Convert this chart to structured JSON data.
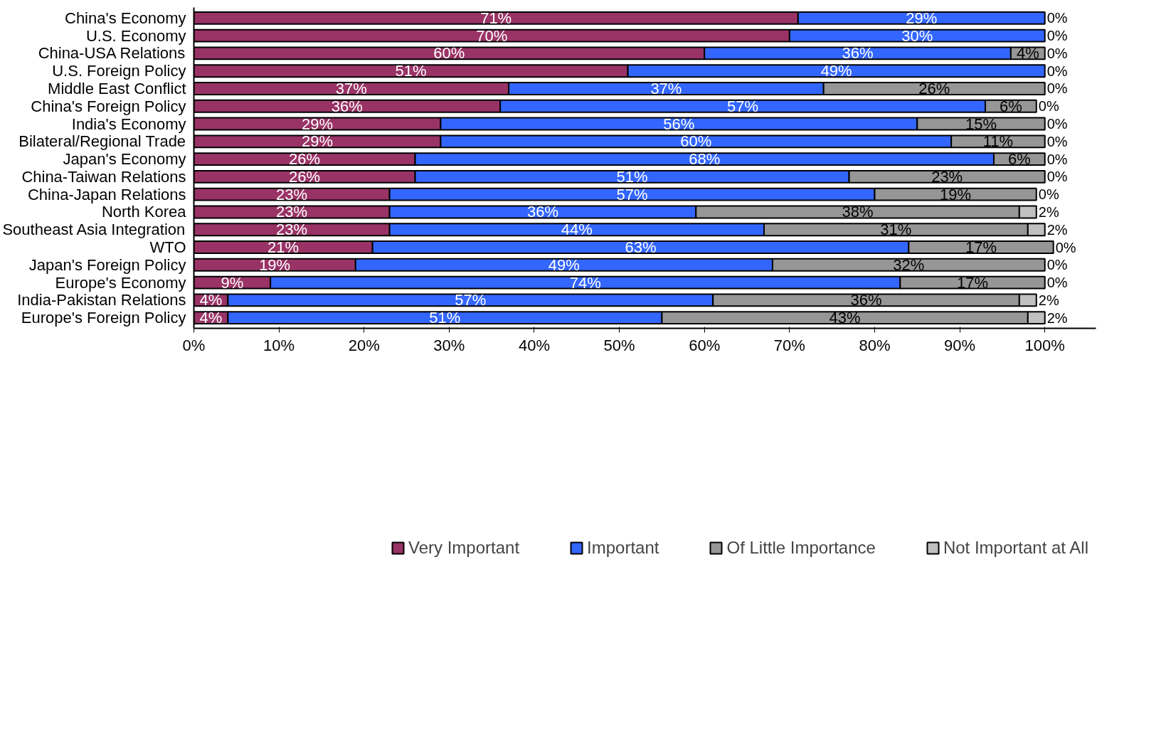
{
  "chart_data": {
    "type": "bar",
    "orientation": "horizontal",
    "stacked": true,
    "categories": [
      "China's Economy",
      "U.S. Economy",
      "China-USA Relations",
      "U.S. Foreign Policy",
      "Middle East Conflict",
      "China's Foreign Policy",
      "India's Economy",
      "Bilateral/Regional Trade",
      "Japan's Economy",
      "China-Taiwan Relations",
      "China-Japan Relations",
      "North Korea",
      "Southeast Asia Integration",
      "WTO",
      "Japan's Foreign Policy",
      "Europe's Economy",
      "India-Pakistan Relations",
      "Europe's Foreign Policy"
    ],
    "series": [
      {
        "name": "Very Important",
        "color": "#993366",
        "values": [
          71,
          70,
          60,
          51,
          37,
          36,
          29,
          29,
          26,
          26,
          23,
          23,
          23,
          21,
          19,
          9,
          4,
          4
        ],
        "value_labels": [
          "71%",
          "70%",
          "60%",
          "51%",
          "37%",
          "36%",
          "29%",
          "29%",
          "26%",
          "26%",
          "23%",
          "23%",
          "23%",
          "21%",
          "19%",
          "9%",
          "4%",
          "4%"
        ]
      },
      {
        "name": "Important",
        "color": "#3366ff",
        "values": [
          29,
          30,
          36,
          49,
          37,
          57,
          56,
          60,
          68,
          51,
          57,
          36,
          44,
          63,
          49,
          74,
          57,
          51
        ],
        "value_labels": [
          "29%",
          "30%",
          "36%",
          "49%",
          "37%",
          "57%",
          "56%",
          "60%",
          "68%",
          "51%",
          "57%",
          "36%",
          "44%",
          "63%",
          "49%",
          "74%",
          "57%",
          "51%"
        ]
      },
      {
        "name": "Of Little Importance",
        "color": "#969696",
        "values": [
          0,
          0,
          4,
          0,
          26,
          6,
          15,
          11,
          6,
          23,
          19,
          38,
          31,
          17,
          32,
          17,
          36,
          43
        ],
        "value_labels": [
          null,
          null,
          "4%",
          null,
          "26%",
          "6%",
          "15%",
          "11%",
          "6%",
          "23%",
          "19%",
          "38%",
          "31%",
          "17%",
          "32%",
          "17%",
          "36%",
          "43%"
        ]
      },
      {
        "name": "Not Important at All",
        "color": "#c0c0c0",
        "values": [
          0,
          0,
          0,
          0,
          0,
          0,
          0,
          0,
          0,
          0,
          0,
          2,
          2,
          0,
          0,
          0,
          2,
          2
        ],
        "value_labels": [
          "0%",
          "0%",
          "0%",
          "0%",
          "0%",
          "0%",
          "0%",
          "0%",
          "0%",
          "0%",
          "0%",
          "2%",
          "2%",
          "0%",
          "0%",
          "0%",
          "2%",
          "2%"
        ]
      }
    ],
    "xlim": [
      0,
      106
    ],
    "xticks": [
      {
        "value": 0,
        "label": "0%"
      },
      {
        "value": 10,
        "label": "10%"
      },
      {
        "value": 20,
        "label": "20%"
      },
      {
        "value": 30,
        "label": "30%"
      },
      {
        "value": 40,
        "label": "40%"
      },
      {
        "value": 50,
        "label": "50%"
      },
      {
        "value": 60,
        "label": "60%"
      },
      {
        "value": 70,
        "label": "70%"
      },
      {
        "value": 80,
        "label": "80%"
      },
      {
        "value": 90,
        "label": "90%"
      },
      {
        "value": 100,
        "label": "100%"
      }
    ],
    "legend": "bottom",
    "grid": false
  }
}
